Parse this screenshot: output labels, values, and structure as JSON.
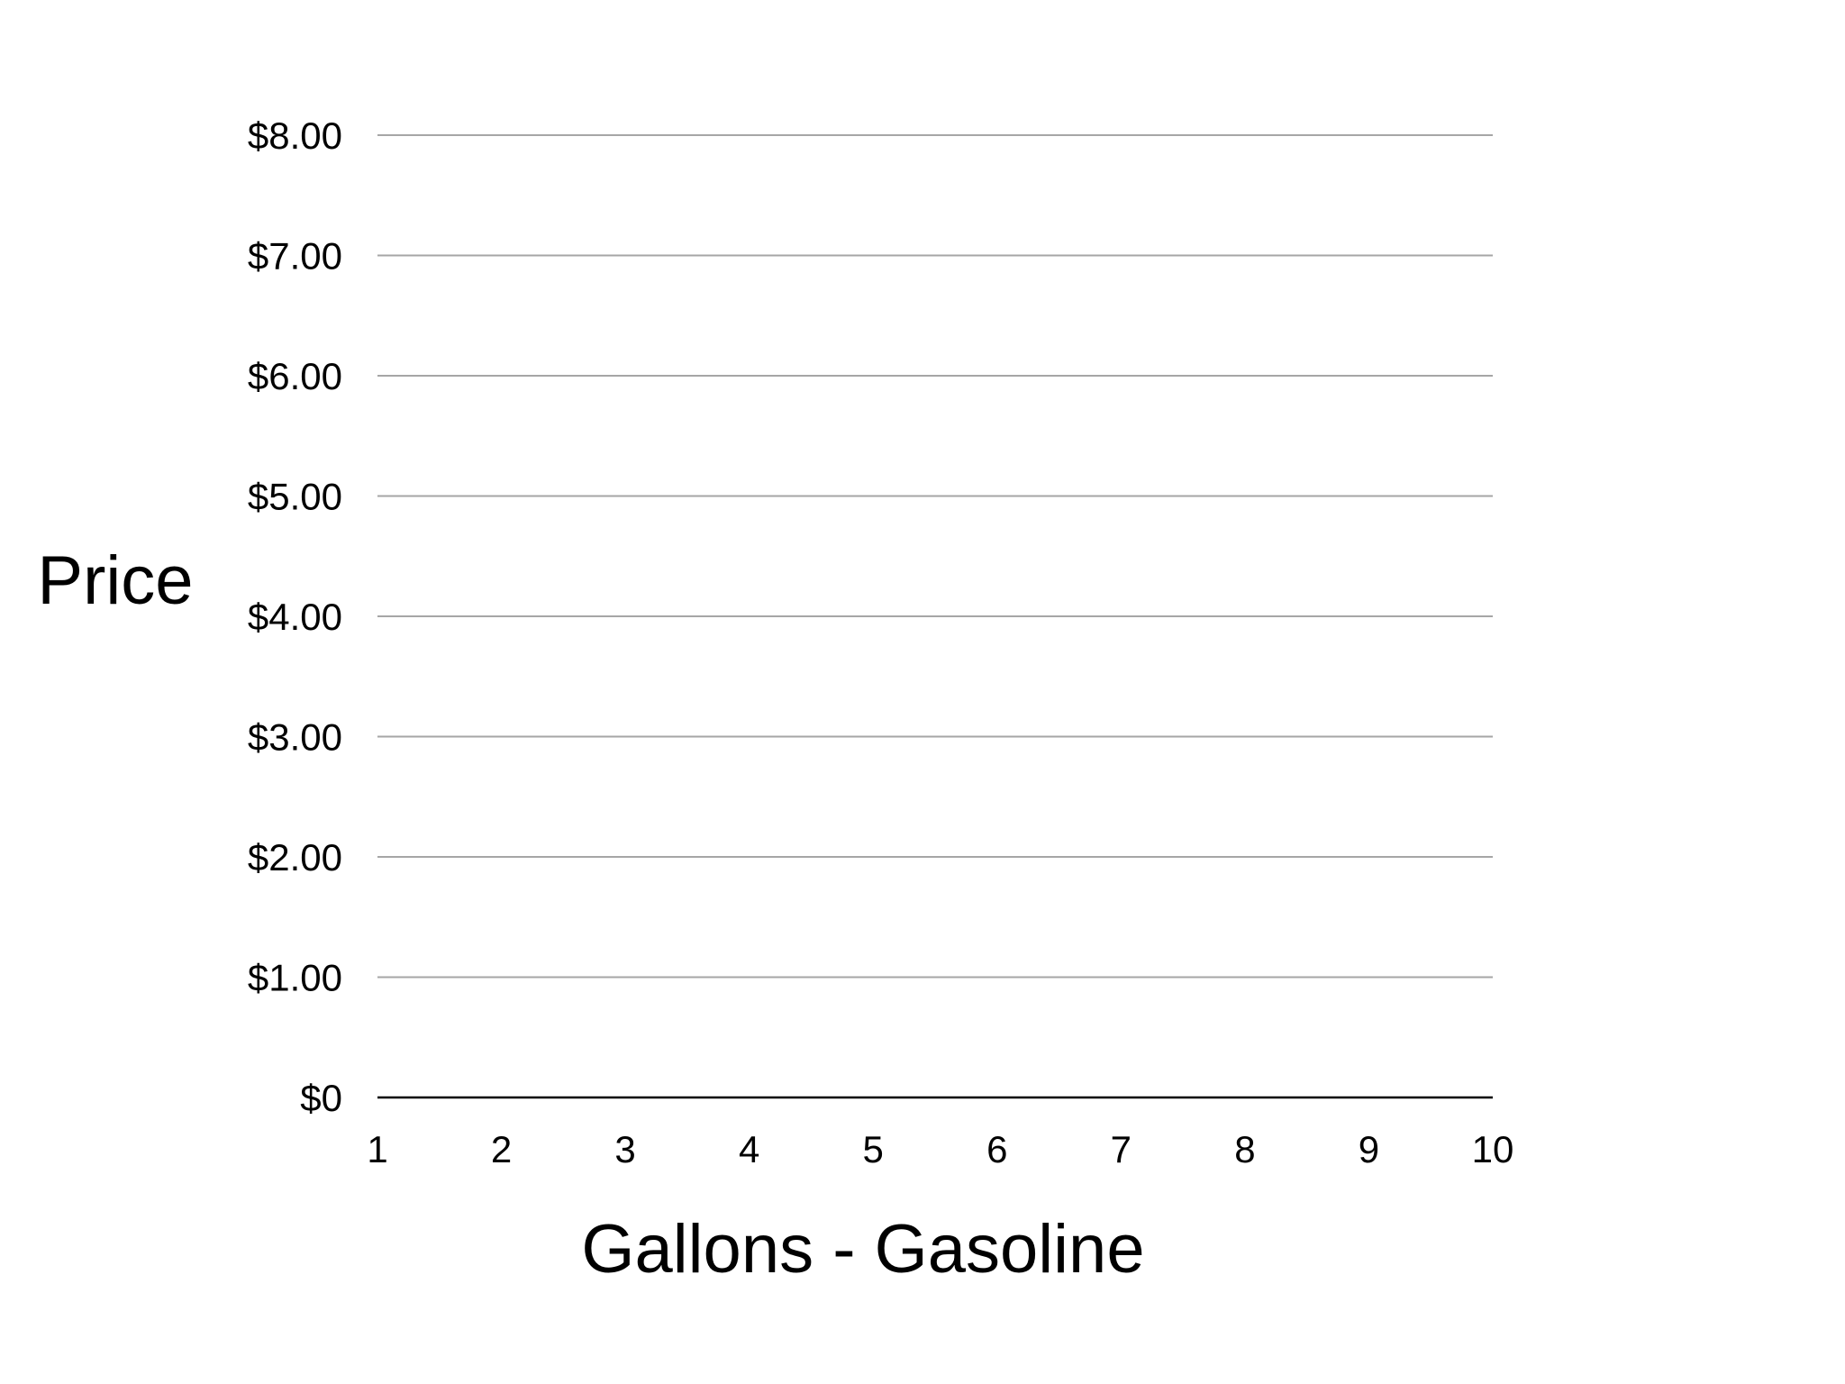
{
  "chart_data": {
    "type": "line",
    "title": "",
    "xlabel": "Gallons - Gasoline",
    "ylabel": "Price",
    "x_ticks": [
      "1",
      "2",
      "3",
      "4",
      "5",
      "6",
      "7",
      "8",
      "9",
      "10"
    ],
    "y_ticks": [
      "$0",
      "$1.00",
      "$2.00",
      "$3.00",
      "$4.00",
      "$5.00",
      "$6.00",
      "$7.00",
      "$8.00"
    ],
    "xlim": [
      1,
      10
    ],
    "ylim": [
      0,
      8
    ],
    "series": [],
    "grid": true,
    "legend": "none",
    "colors": {
      "gridline": "#a6a6a6",
      "baseline": "#000000",
      "text": "#000000"
    }
  }
}
